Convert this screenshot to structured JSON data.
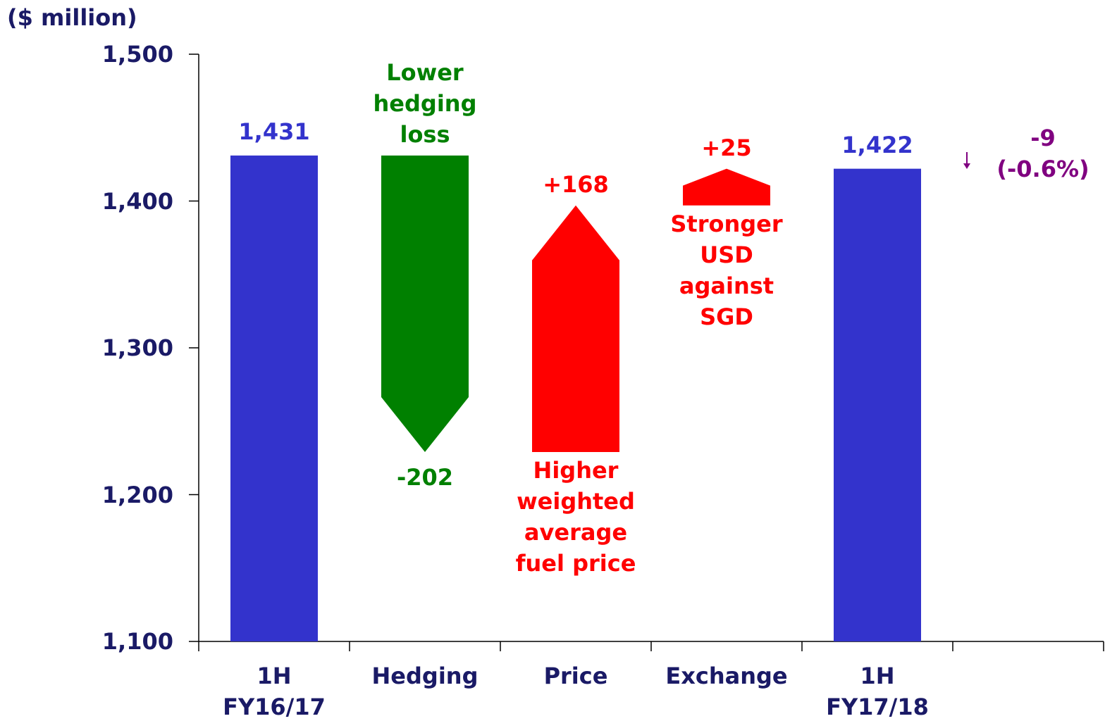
{
  "chart_data": {
    "type": "waterfall",
    "unit_label": "($ million)",
    "categories": [
      "1H\nFY16/17",
      "Hedging",
      "Price",
      "Exchange",
      "1H\nFY17/18",
      null
    ],
    "values": [
      1431,
      -202,
      168,
      25,
      1422,
      null
    ],
    "value_labels": [
      "1,431",
      "-202",
      "+168",
      "+25",
      "1,422",
      null
    ],
    "measure": [
      "absolute",
      "relative",
      "relative",
      "relative",
      "absolute",
      null
    ],
    "colors": [
      "#3333cc",
      "#008000",
      "#ff0000",
      "#ff0000",
      "#3333cc",
      null
    ],
    "annotations": [
      null,
      "Lower\nhedging\nloss",
      "Higher\nweighted\naverage\nfuel price",
      "Stronger\nUSD\nagainst\nSGD",
      null,
      null
    ],
    "change": {
      "value": -9,
      "label": "-9\n(-0.6%)",
      "color": "#800080"
    },
    "ylim": [
      1100,
      1500
    ],
    "yticks": [
      {
        "value": 1100,
        "label": "1,100"
      },
      {
        "value": 1200,
        "label": "1,200"
      },
      {
        "value": 1300,
        "label": "1,300"
      },
      {
        "value": 1400,
        "label": "1,400"
      },
      {
        "value": 1500,
        "label": "1,500"
      }
    ]
  }
}
